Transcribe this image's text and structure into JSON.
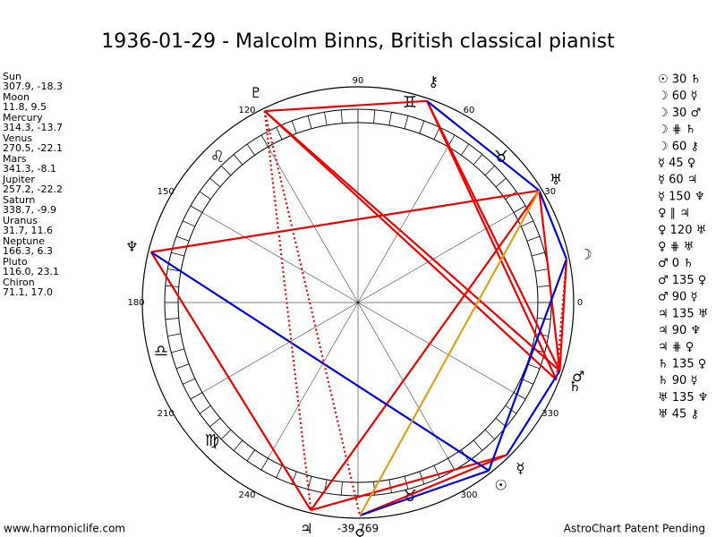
{
  "header": {
    "title": "1936-01-29 - Malcolm Binns, British classical pianist"
  },
  "planets": [
    {
      "name": "Sun",
      "coords": "307.9, -18.3",
      "glyph": "☉"
    },
    {
      "name": "Moon",
      "coords": "11.8, 9.5",
      "glyph": "☽"
    },
    {
      "name": "Mercury",
      "coords": "314.3, -13.7",
      "glyph": "☿"
    },
    {
      "name": "Venus",
      "coords": "270.5, -22.1",
      "glyph": "♀"
    },
    {
      "name": "Mars",
      "coords": "341.3, -8.1",
      "glyph": "♂"
    },
    {
      "name": "Jupiter",
      "coords": "257.2, -22.2",
      "glyph": "♃"
    },
    {
      "name": "Saturn",
      "coords": "338.7, -9.9",
      "glyph": "♄"
    },
    {
      "name": "Uranus",
      "coords": "31.7, 11.6",
      "glyph": "♅"
    },
    {
      "name": "Neptune",
      "coords": "166.3, 6.3",
      "glyph": "♆"
    },
    {
      "name": "Pluto",
      "coords": "116.0, 23.1",
      "glyph": "♇"
    },
    {
      "name": "Chiron",
      "coords": "71.1, 17.0",
      "glyph": "⚷"
    }
  ],
  "aspects": [
    "☉ 30 ♄",
    "☽ 60 ☿",
    "☽ 30 ♂",
    "☽ ⋕ ♄",
    "☽ 60 ⚷",
    "☿ 45 ♀",
    "☿ 60 ♃",
    "☿ 150 ♆",
    "♀ ∥ ♃",
    "♀ 120 ♅",
    "♀ ⋕ ♅",
    "♂ 0 ♄",
    "♂ 135 ♀",
    "♂ 90 ☿",
    "♃ 135 ♅",
    "♃ 90 ♆",
    "♃ ⋕ ♀",
    "♄ 135 ♀",
    "♄ 90 ☿",
    "♅ 135 ♆",
    "♅ 45 ⚷"
  ],
  "degree_labels": [
    0,
    30,
    60,
    90,
    120,
    150,
    180,
    210,
    240,
    300,
    330
  ],
  "signs": [
    "♊",
    "♉",
    "♌",
    "♎",
    "♍",
    "♉"
  ],
  "footer": {
    "left": "www.harmoniclife.com",
    "center": "-39,769",
    "right": "AstroChart Patent Pending"
  }
}
